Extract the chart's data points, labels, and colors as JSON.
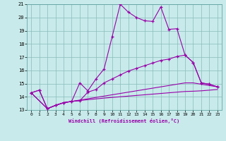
{
  "xlabel": "Windchill (Refroidissement éolien,°C)",
  "xlim": [
    -0.5,
    23.5
  ],
  "ylim": [
    13,
    21
  ],
  "xticks": [
    0,
    1,
    2,
    3,
    4,
    5,
    6,
    7,
    8,
    9,
    10,
    11,
    12,
    13,
    14,
    15,
    16,
    17,
    18,
    19,
    20,
    21,
    22,
    23
  ],
  "yticks": [
    13,
    14,
    15,
    16,
    17,
    18,
    19,
    20,
    21
  ],
  "bg_color": "#c8eaea",
  "line_color": "#9900aa",
  "grid_color": "#88bbbb",
  "line1_x": [
    0,
    1,
    2,
    3,
    4,
    5,
    6,
    7,
    8,
    9,
    10,
    11,
    12,
    13,
    14,
    15,
    16,
    17,
    18,
    19,
    20,
    21,
    22,
    23
  ],
  "line1_y": [
    14.3,
    14.5,
    13.1,
    13.35,
    13.55,
    13.65,
    15.05,
    14.45,
    15.35,
    16.1,
    18.55,
    21.0,
    20.4,
    20.0,
    19.75,
    19.7,
    20.8,
    19.1,
    19.15,
    17.15,
    16.6,
    15.05,
    14.95,
    14.75
  ],
  "line2_x": [
    0,
    1,
    2,
    3,
    4,
    5,
    6,
    7,
    8,
    9,
    10,
    11,
    12,
    13,
    14,
    15,
    16,
    17,
    18,
    19,
    20,
    21,
    22,
    23
  ],
  "line2_y": [
    14.3,
    14.5,
    13.1,
    13.35,
    13.55,
    13.65,
    13.7,
    14.35,
    14.55,
    15.05,
    15.35,
    15.65,
    15.95,
    16.15,
    16.35,
    16.55,
    16.75,
    16.85,
    17.05,
    17.15,
    16.6,
    15.05,
    14.95,
    14.75
  ],
  "line3_x": [
    0,
    2,
    3,
    4,
    5,
    6,
    7,
    8,
    9,
    10,
    11,
    12,
    13,
    14,
    15,
    16,
    17,
    18,
    19,
    20,
    21,
    22,
    23
  ],
  "line3_y": [
    14.3,
    13.1,
    13.35,
    13.55,
    13.65,
    13.75,
    13.85,
    13.95,
    14.05,
    14.15,
    14.25,
    14.35,
    14.45,
    14.55,
    14.65,
    14.75,
    14.85,
    14.95,
    15.05,
    15.05,
    14.95,
    14.85,
    14.75
  ],
  "line4_x": [
    0,
    2,
    3,
    4,
    5,
    6,
    7,
    8,
    9,
    10,
    11,
    12,
    13,
    14,
    15,
    16,
    17,
    18,
    19,
    20,
    21,
    22,
    23
  ],
  "line4_y": [
    14.3,
    13.1,
    13.35,
    13.55,
    13.65,
    13.72,
    13.78,
    13.84,
    13.9,
    13.95,
    14.0,
    14.05,
    14.1,
    14.15,
    14.2,
    14.25,
    14.3,
    14.35,
    14.4,
    14.42,
    14.45,
    14.5,
    14.55
  ]
}
